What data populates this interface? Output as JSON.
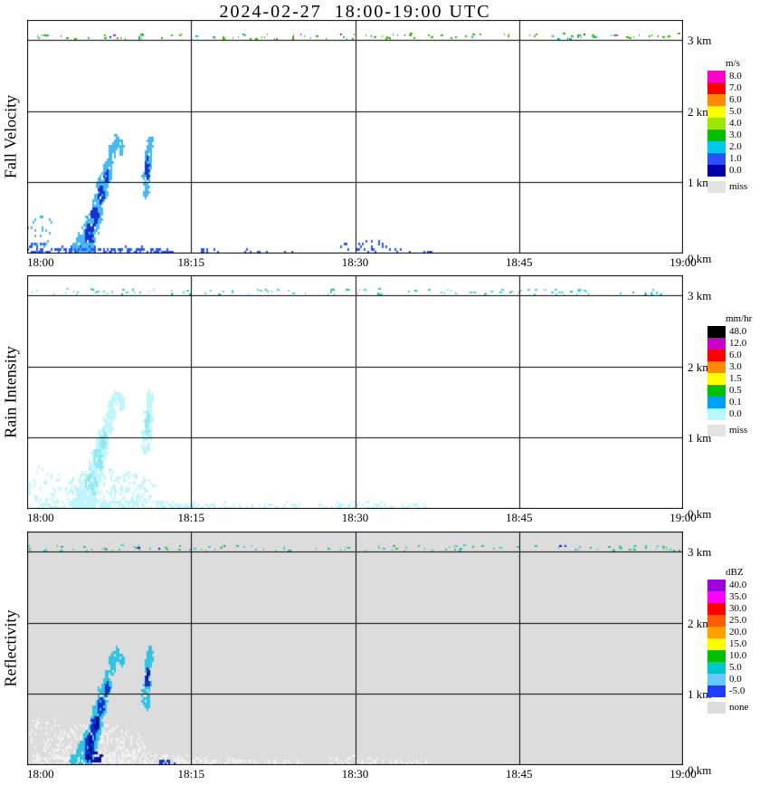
{
  "title": "2024-02-27  18:00-19:00 UTC",
  "chart_data": [
    {
      "type": "heatmap",
      "title": "Fall Velocity",
      "unit": "m/s",
      "x_ticks": [
        "18:00",
        "18:15",
        "18:30",
        "18:45",
        "19:00"
      ],
      "y_ticks": [
        "3 km",
        "2 km",
        "1 km",
        "0 km"
      ],
      "y_tick_km": [
        3,
        2,
        1,
        0
      ],
      "x_range_minutes": [
        0,
        60
      ],
      "y_range_km": [
        0,
        3.28
      ],
      "grid": {
        "horizontal_km": [
          1,
          2,
          3
        ],
        "vertical": [
          "18:15",
          "18:30",
          "18:45"
        ]
      },
      "legend_position": "right",
      "colorbar": {
        "labels": [
          "8.0",
          "7.0",
          "6.0",
          "5.0",
          "4.0",
          "3.0",
          "2.0",
          "1.0",
          "0.0"
        ],
        "colors": [
          "#FF00C8",
          "#FF0000",
          "#FF8C00",
          "#FFFF00",
          "#9BE800",
          "#00C000",
          "#00C8F0",
          "#2850FF",
          "#0000A8"
        ],
        "missing_label": "miss",
        "missing_color": "#E3E3E3"
      },
      "features": [
        {
          "name": "clutter-speck-line",
          "time": [
            "18:00",
            "19:00"
          ],
          "height_km": [
            3.0,
            3.1
          ],
          "values": "mostly green (3-4 m/s) dashes, occasional red/blue/cyan"
        },
        {
          "name": "main-precip-streak",
          "time": [
            "18:04",
            "18:09"
          ],
          "height_km": [
            0.0,
            1.65
          ],
          "values": "1-2 m/s light blue with 0-1 m/s dark blue core, slanted streak rising from surface with hooked top"
        },
        {
          "name": "secondary-echo",
          "time": [
            "18:10",
            "18:12"
          ],
          "height_km": [
            0.85,
            1.65
          ],
          "values": "1-2 m/s with small dark core"
        },
        {
          "name": "surface-specks",
          "time": [
            "18:00",
            "18:14"
          ],
          "height_km": [
            0.0,
            0.15
          ],
          "values": "blue specks; sparse isolated specks until ~18:37, small cluster to 0.35 km near 18:31"
        },
        {
          "name": "left-edge-scatter",
          "time": [
            "18:00",
            "18:03"
          ],
          "height_km": [
            0.0,
            0.6
          ],
          "values": "scattered light-blue/blue specks"
        }
      ]
    },
    {
      "type": "heatmap",
      "title": "Rain Intensity",
      "unit": "mm/hr",
      "x_ticks": [
        "18:00",
        "18:15",
        "18:30",
        "18:45",
        "19:00"
      ],
      "y_ticks": [
        "3 km",
        "2 km",
        "1 km",
        "0 km"
      ],
      "y_tick_km": [
        3,
        2,
        1,
        0
      ],
      "x_range_minutes": [
        0,
        60
      ],
      "y_range_km": [
        0,
        3.28
      ],
      "grid": {
        "horizontal_km": [
          1,
          2,
          3
        ],
        "vertical": [
          "18:15",
          "18:30",
          "18:45"
        ]
      },
      "legend_position": "right",
      "colorbar": {
        "labels": [
          "48.0",
          "12.0",
          "6.0",
          "3.0",
          "1.5",
          "0.5",
          "0.1",
          "0.0"
        ],
        "colors": [
          "#000000",
          "#C800C8",
          "#FF0000",
          "#FF8C00",
          "#FFFF00",
          "#00C000",
          "#00A0FF",
          "#B4FAFF"
        ],
        "missing_label": "miss",
        "missing_color": "#E3E3E3"
      },
      "features": [
        {
          "name": "clutter-speck-line",
          "time": [
            "18:00",
            "19:00"
          ],
          "height_km": [
            3.0,
            3.1
          ],
          "values": "cyan dashes with some green"
        },
        {
          "name": "main-precip-streak",
          "time": [
            "18:04",
            "18:09"
          ],
          "height_km": [
            0.0,
            1.65
          ],
          "values": "0.0-0.1 mm/hr pale cyan, same slanted shape as fall-velocity streak"
        },
        {
          "name": "secondary-echo",
          "time": [
            "18:10",
            "18:12"
          ],
          "height_km": [
            0.85,
            1.65
          ],
          "values": "0.0-0.1 mm/hr pale cyan"
        },
        {
          "name": "surface-patch",
          "time": [
            "18:00",
            "18:38"
          ],
          "height_km": [
            0.0,
            0.6
          ],
          "values": "broad faint pale-cyan drizzle patch, densest 18:03-18:14"
        }
      ]
    },
    {
      "type": "heatmap",
      "title": "Reflectivity",
      "unit": "dBZ",
      "x_ticks": [
        "18:00",
        "18:15",
        "18:30",
        "18:45",
        "19:00"
      ],
      "y_ticks": [
        "3 km",
        "2 km",
        "1 km",
        "0 km"
      ],
      "y_tick_km": [
        3,
        2,
        1,
        0
      ],
      "x_range_minutes": [
        0,
        60
      ],
      "y_range_km": [
        0,
        3.28
      ],
      "grid": {
        "horizontal_km": [
          1,
          2,
          3
        ],
        "vertical": [
          "18:15",
          "18:30",
          "18:45"
        ]
      },
      "legend_position": "right",
      "background_note": "entire panel shaded gray = none (no echo)",
      "colorbar": {
        "labels": [
          "40.0",
          "35.0",
          "30.0",
          "25.0",
          "20.0",
          "15.0",
          "10.0",
          "5.0",
          "0.0",
          "-5.0"
        ],
        "colors": [
          "#A000DC",
          "#FF00FF",
          "#FF0000",
          "#FF5A00",
          "#FFA000",
          "#FFFF00",
          "#00C000",
          "#00C8C8",
          "#64C8FF",
          "#1E3CFF"
        ],
        "missing_label": "none",
        "missing_color": "#DCDCDC"
      },
      "features": [
        {
          "name": "clutter-speck-line",
          "time": [
            "18:00",
            "19:00"
          ],
          "height_km": [
            3.0,
            3.1
          ],
          "values": "green and cyan dashes, rare dark blue"
        },
        {
          "name": "main-precip-streak",
          "time": [
            "18:04",
            "18:09"
          ],
          "height_km": [
            0.0,
            1.65
          ],
          "values": "0-10 dBZ cyan edge, -5 to 0 dBZ blue interior, navy core near 0.3-0.6 km"
        },
        {
          "name": "secondary-echo",
          "time": [
            "18:10",
            "18:12"
          ],
          "height_km": [
            0.85,
            1.65
          ],
          "values": "cyan/blue with small navy core"
        },
        {
          "name": "low-dbz-halo",
          "time": [
            "18:00",
            "18:38"
          ],
          "height_km": [
            0.0,
            0.7
          ],
          "values": "whitish very-low-reflectivity halo around streak base and along surface"
        }
      ]
    }
  ],
  "render": {
    "panels": [
      {
        "seed": 7,
        "bg": "#FFFFFF",
        "palette": [
          "#45B8F2",
          "#1433CC",
          "#2A5BE8"
        ],
        "blobs": [
          [
            5.0,
            0.1,
            1.15,
            0.1,
            150,
            0
          ],
          [
            5.3,
            0.22,
            0.85,
            0.16,
            130,
            0
          ],
          [
            5.8,
            0.38,
            0.7,
            0.2,
            130,
            0
          ],
          [
            6.3,
            0.62,
            0.6,
            0.24,
            130,
            0
          ],
          [
            6.8,
            0.92,
            0.5,
            0.22,
            110,
            0
          ],
          [
            7.3,
            1.18,
            0.42,
            0.18,
            85,
            0
          ],
          [
            7.7,
            1.42,
            0.36,
            0.14,
            65,
            0
          ],
          [
            8.1,
            1.58,
            0.3,
            0.1,
            45,
            0
          ],
          [
            8.6,
            1.5,
            0.22,
            0.1,
            25,
            0
          ],
          [
            5.6,
            0.3,
            0.4,
            0.14,
            70,
            1
          ],
          [
            6.1,
            0.55,
            0.32,
            0.15,
            60,
            1
          ],
          [
            6.7,
            0.85,
            0.26,
            0.12,
            45,
            1
          ],
          [
            7.2,
            1.1,
            0.2,
            0.1,
            28,
            1
          ],
          [
            10.8,
            1.0,
            0.38,
            0.2,
            80,
            0
          ],
          [
            11.0,
            1.3,
            0.33,
            0.22,
            80,
            0
          ],
          [
            11.2,
            1.56,
            0.27,
            0.11,
            45,
            0
          ],
          [
            10.9,
            1.22,
            0.18,
            0.16,
            35,
            1
          ],
          [
            1.2,
            0.3,
            1.3,
            0.28,
            35,
            0
          ],
          [
            0.8,
            0.1,
            0.9,
            0.09,
            25,
            2
          ],
          [
            7.0,
            0.05,
            6.9,
            0.06,
            150,
            2
          ],
          [
            12.5,
            0.04,
            1.5,
            0.04,
            20,
            2
          ],
          [
            16.5,
            0.05,
            1.0,
            0.05,
            10,
            2
          ],
          [
            20.8,
            0.04,
            1.2,
            0.04,
            12,
            2
          ],
          [
            24.0,
            0.04,
            0.6,
            0.03,
            6,
            2
          ],
          [
            30.8,
            0.1,
            2.2,
            0.1,
            30,
            2
          ],
          [
            33.9,
            0.05,
            1.0,
            0.04,
            10,
            2
          ],
          [
            36.5,
            0.04,
            0.5,
            0.03,
            5,
            2
          ]
        ],
        "specks": {
          "h": 3.06,
          "n": 120,
          "colors": [
            [
              "#2BBF00",
              0.78
            ],
            [
              "#00B7B7",
              0.1
            ],
            [
              "#D23B3B",
              0.05
            ],
            [
              "#2B2BD2",
              0.04
            ],
            [
              "#C000C0",
              0.03
            ]
          ]
        }
      },
      {
        "seed": 13,
        "bg": "#FFFFFF",
        "palette": [
          "#BFF6FB",
          "#8FE9F0"
        ],
        "blobs": [
          [
            5.0,
            0.1,
            1.25,
            0.11,
            170,
            0
          ],
          [
            5.3,
            0.22,
            0.95,
            0.17,
            150,
            0
          ],
          [
            5.8,
            0.38,
            0.78,
            0.22,
            150,
            0
          ],
          [
            6.3,
            0.62,
            0.66,
            0.26,
            150,
            0
          ],
          [
            6.8,
            0.92,
            0.55,
            0.24,
            125,
            0
          ],
          [
            7.3,
            1.18,
            0.46,
            0.2,
            95,
            0
          ],
          [
            7.7,
            1.42,
            0.4,
            0.15,
            70,
            0
          ],
          [
            8.1,
            1.58,
            0.33,
            0.11,
            50,
            0
          ],
          [
            8.6,
            1.5,
            0.24,
            0.1,
            28,
            0
          ],
          [
            5.8,
            0.4,
            0.5,
            0.18,
            70,
            1
          ],
          [
            6.4,
            0.7,
            0.4,
            0.18,
            60,
            1
          ],
          [
            6.9,
            1.0,
            0.3,
            0.14,
            40,
            1
          ],
          [
            10.8,
            1.0,
            0.42,
            0.22,
            90,
            0
          ],
          [
            11.0,
            1.3,
            0.36,
            0.24,
            90,
            0
          ],
          [
            11.2,
            1.58,
            0.3,
            0.12,
            50,
            0
          ],
          [
            10.9,
            1.22,
            0.2,
            0.17,
            40,
            1
          ],
          [
            7.5,
            0.28,
            4.2,
            0.3,
            330,
            0
          ],
          [
            8.0,
            0.07,
            7.8,
            0.08,
            240,
            0
          ],
          [
            1.5,
            0.35,
            1.6,
            0.3,
            55,
            0
          ],
          [
            14.5,
            0.05,
            1.5,
            0.05,
            25,
            0
          ],
          [
            18.5,
            0.05,
            2.5,
            0.05,
            40,
            0
          ],
          [
            23.0,
            0.05,
            2.0,
            0.05,
            28,
            0
          ],
          [
            27.5,
            0.04,
            1.2,
            0.04,
            14,
            0
          ],
          [
            30.5,
            0.06,
            3.0,
            0.07,
            55,
            0
          ],
          [
            35.0,
            0.05,
            1.8,
            0.05,
            20,
            0
          ]
        ],
        "specks": {
          "h": 3.06,
          "n": 115,
          "colors": [
            [
              "#35D8D8",
              0.72
            ],
            [
              "#2BC76B",
              0.18
            ],
            [
              "#7FD8F2",
              0.1
            ]
          ]
        }
      },
      {
        "seed": 21,
        "bg": "#DCDCDC",
        "palette": [
          "#2FC4E4",
          "#1433CC",
          "#050FA0",
          "#F1F1F1"
        ],
        "blobs": [
          [
            6.2,
            0.28,
            4.6,
            0.32,
            360,
            3
          ],
          [
            8.5,
            0.08,
            8.2,
            0.1,
            280,
            3
          ],
          [
            1.6,
            0.38,
            1.8,
            0.33,
            70,
            3
          ],
          [
            14.5,
            0.05,
            1.6,
            0.05,
            26,
            3
          ],
          [
            18.5,
            0.05,
            2.6,
            0.06,
            45,
            3
          ],
          [
            23.0,
            0.05,
            2.0,
            0.05,
            30,
            3
          ],
          [
            30.5,
            0.07,
            3.2,
            0.08,
            60,
            3
          ],
          [
            35.0,
            0.05,
            1.8,
            0.05,
            22,
            3
          ],
          [
            5.0,
            0.1,
            1.15,
            0.1,
            150,
            0
          ],
          [
            5.3,
            0.22,
            0.85,
            0.16,
            130,
            0
          ],
          [
            5.8,
            0.38,
            0.7,
            0.2,
            130,
            0
          ],
          [
            6.3,
            0.62,
            0.6,
            0.24,
            130,
            0
          ],
          [
            6.8,
            0.92,
            0.5,
            0.22,
            110,
            0
          ],
          [
            7.3,
            1.18,
            0.42,
            0.18,
            85,
            0
          ],
          [
            7.7,
            1.42,
            0.36,
            0.14,
            65,
            0
          ],
          [
            8.1,
            1.58,
            0.3,
            0.1,
            45,
            0
          ],
          [
            8.6,
            1.5,
            0.22,
            0.1,
            25,
            0
          ],
          [
            5.6,
            0.3,
            0.42,
            0.15,
            75,
            1
          ],
          [
            6.1,
            0.55,
            0.34,
            0.16,
            65,
            1
          ],
          [
            6.7,
            0.85,
            0.28,
            0.13,
            50,
            1
          ],
          [
            7.2,
            1.1,
            0.2,
            0.1,
            28,
            1
          ],
          [
            5.7,
            0.33,
            0.22,
            0.1,
            35,
            2
          ],
          [
            6.3,
            0.6,
            0.18,
            0.1,
            30,
            2
          ],
          [
            6.0,
            0.12,
            0.8,
            0.08,
            40,
            2
          ],
          [
            10.8,
            1.0,
            0.38,
            0.2,
            80,
            0
          ],
          [
            11.0,
            1.3,
            0.33,
            0.22,
            80,
            0
          ],
          [
            11.2,
            1.56,
            0.27,
            0.11,
            45,
            0
          ],
          [
            10.9,
            1.22,
            0.18,
            0.16,
            38,
            1
          ],
          [
            11.0,
            1.3,
            0.1,
            0.1,
            14,
            2
          ],
          [
            12.6,
            0.05,
            0.8,
            0.04,
            12,
            1
          ]
        ],
        "specks": {
          "h": 3.06,
          "n": 115,
          "colors": [
            [
              "#2BC76B",
              0.5
            ],
            [
              "#35CFCF",
              0.42
            ],
            [
              "#1A1ACC",
              0.08
            ]
          ]
        }
      }
    ]
  }
}
